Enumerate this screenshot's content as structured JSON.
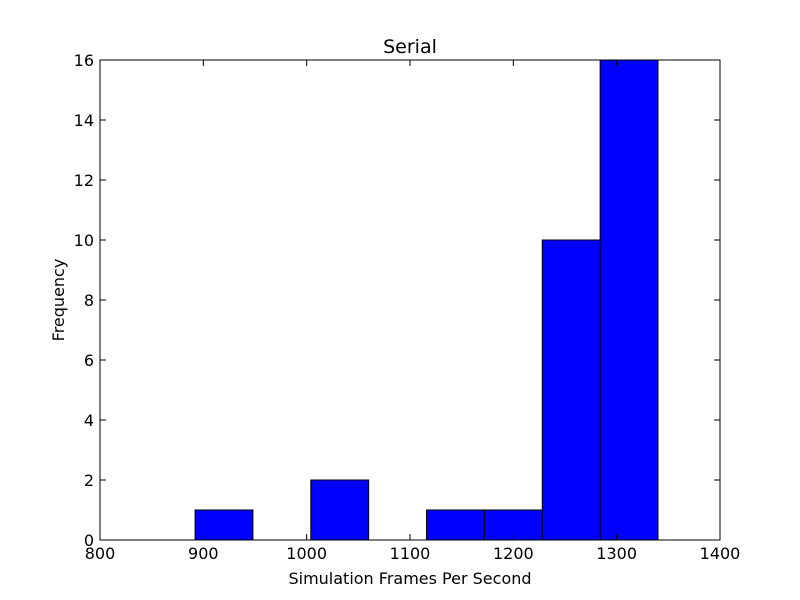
{
  "chart_data": {
    "type": "bar",
    "title": "Serial",
    "xlabel": "Simulation Frames Per Second",
    "ylabel": "Frequency",
    "xlim": [
      800,
      1400
    ],
    "ylim": [
      0,
      16
    ],
    "xticks": [
      800,
      900,
      1000,
      1100,
      1200,
      1300,
      1400
    ],
    "yticks": [
      0,
      2,
      4,
      6,
      8,
      10,
      12,
      14,
      16
    ],
    "bins": [
      {
        "x0": 892,
        "x1": 948,
        "count": 1
      },
      {
        "x0": 948,
        "x1": 1004,
        "count": 0
      },
      {
        "x0": 1004,
        "x1": 1060,
        "count": 2
      },
      {
        "x0": 1060,
        "x1": 1116,
        "count": 0
      },
      {
        "x0": 1116,
        "x1": 1172,
        "count": 1
      },
      {
        "x0": 1172,
        "x1": 1228,
        "count": 1
      },
      {
        "x0": 1228,
        "x1": 1284,
        "count": 10
      },
      {
        "x0": 1284,
        "x1": 1340,
        "count": 16
      }
    ],
    "bar_color": "#0000ff",
    "edge_color": "#000000",
    "grid": false
  }
}
